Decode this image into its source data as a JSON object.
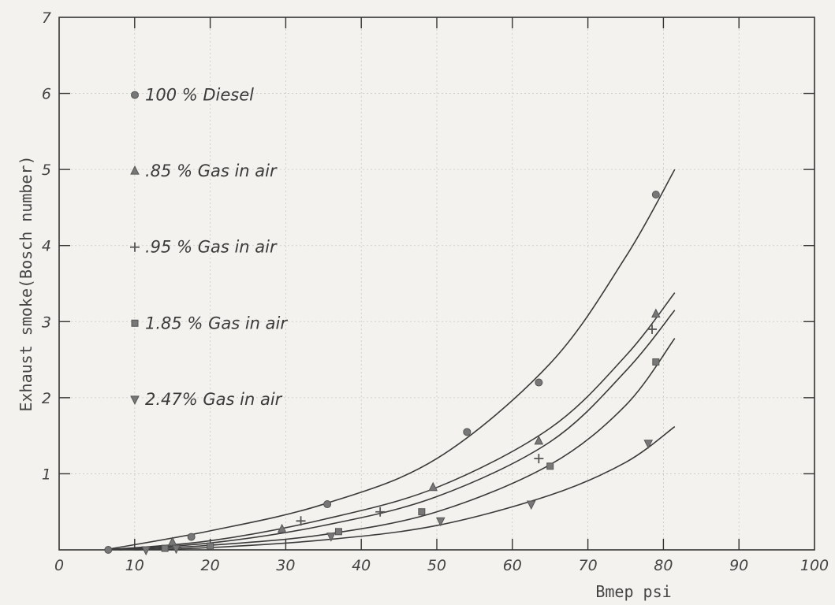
{
  "chart_data": {
    "type": "scatter",
    "xlabel": "Bmep psi",
    "ylabel": "Exhaust smoke(Bosch number)",
    "xlim": [
      0,
      100
    ],
    "ylim": [
      0,
      7
    ],
    "xticks": [
      "0",
      "10",
      "20",
      "30",
      "40",
      "50",
      "60",
      "70",
      "80",
      "90",
      "100"
    ],
    "yticks": [
      "1",
      "2",
      "3",
      "4",
      "5",
      "6",
      "7"
    ],
    "grid": true,
    "legend_position": "top-left",
    "series": [
      {
        "name": "100 % Diesel",
        "marker": "circle",
        "points": [
          [
            6.5,
            0.0
          ],
          [
            17.5,
            0.17
          ],
          [
            35.5,
            0.6
          ],
          [
            54,
            1.55
          ],
          [
            63.5,
            2.2
          ],
          [
            79,
            4.67
          ]
        ],
        "fit": [
          [
            6,
            0.0
          ],
          [
            20,
            0.25
          ],
          [
            35,
            0.6
          ],
          [
            50,
            1.2
          ],
          [
            65,
            2.45
          ],
          [
            75,
            3.85
          ],
          [
            81.5,
            5.0
          ]
        ]
      },
      {
        "name": ".85 % Gas in air",
        "marker": "triangle-up",
        "points": [
          [
            15,
            0.1
          ],
          [
            29.5,
            0.27
          ],
          [
            49.5,
            0.82
          ],
          [
            63.5,
            1.43
          ],
          [
            79,
            3.1
          ]
        ],
        "fit": [
          [
            6,
            0.0
          ],
          [
            20,
            0.12
          ],
          [
            35,
            0.4
          ],
          [
            50,
            0.82
          ],
          [
            65,
            1.6
          ],
          [
            75,
            2.55
          ],
          [
            81.5,
            3.38
          ]
        ]
      },
      {
        "name": ".95 % Gas in air",
        "marker": "plus",
        "points": [
          [
            15.5,
            0.02
          ],
          [
            32,
            0.38
          ],
          [
            42.5,
            0.5
          ],
          [
            63.5,
            1.2
          ],
          [
            78.5,
            2.9
          ]
        ],
        "fit": [
          [
            6,
            0.0
          ],
          [
            20,
            0.09
          ],
          [
            35,
            0.32
          ],
          [
            50,
            0.7
          ],
          [
            65,
            1.42
          ],
          [
            75,
            2.35
          ],
          [
            81.5,
            3.15
          ]
        ]
      },
      {
        "name": "1.85 % Gas in air",
        "marker": "square",
        "points": [
          [
            14,
            0.02
          ],
          [
            20,
            0.05
          ],
          [
            37,
            0.24
          ],
          [
            48,
            0.5
          ],
          [
            65,
            1.1
          ],
          [
            79,
            2.47
          ]
        ],
        "fit": [
          [
            8,
            0.0
          ],
          [
            20,
            0.06
          ],
          [
            35,
            0.2
          ],
          [
            50,
            0.5
          ],
          [
            65,
            1.12
          ],
          [
            75,
            1.9
          ],
          [
            81.5,
            2.78
          ]
        ]
      },
      {
        "name": "2.47% Gas in air",
        "marker": "triangle-down",
        "points": [
          [
            11.5,
            0.0
          ],
          [
            15.5,
            0.02
          ],
          [
            36,
            0.18
          ],
          [
            50.5,
            0.38
          ],
          [
            62.5,
            0.6
          ],
          [
            78,
            1.4
          ]
        ],
        "fit": [
          [
            10,
            0.0
          ],
          [
            20,
            0.03
          ],
          [
            35,
            0.13
          ],
          [
            50,
            0.32
          ],
          [
            65,
            0.72
          ],
          [
            75,
            1.15
          ],
          [
            81.5,
            1.62
          ]
        ]
      }
    ]
  }
}
